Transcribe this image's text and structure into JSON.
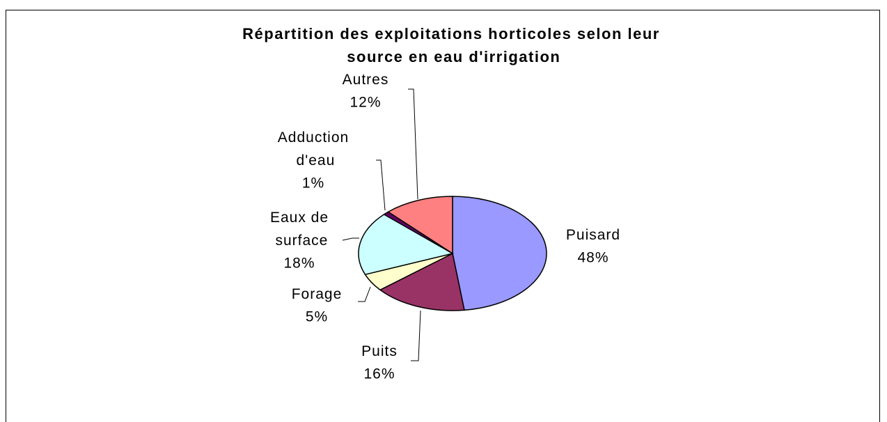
{
  "chart_data": {
    "type": "pie",
    "title": "Répartition des exploitations horticoles selon leur source en eau d'irrigation",
    "categories": [
      "Puisard",
      "Puits",
      "Forage",
      "Eaux de surface",
      "Adduction d'eau",
      "Autres"
    ],
    "values": [
      48,
      16,
      5,
      18,
      1,
      12
    ],
    "value_labels": [
      "48%",
      "16%",
      "5%",
      "18%",
      "1%",
      "12%"
    ],
    "colors": [
      "#9999ff",
      "#993366",
      "#ffffcc",
      "#ccffff",
      "#660066",
      "#ff8080"
    ]
  }
}
